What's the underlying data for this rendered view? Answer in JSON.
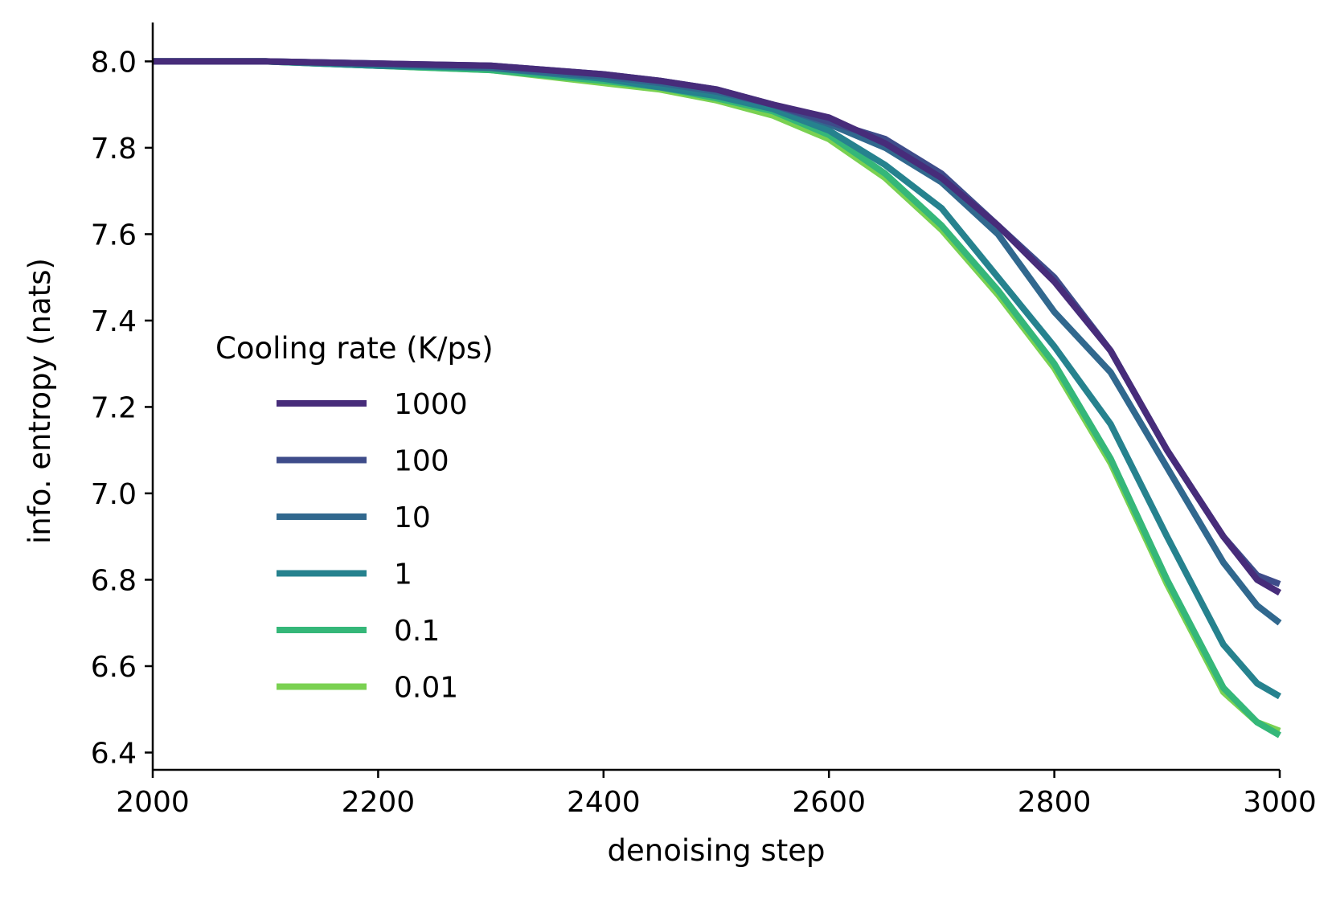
{
  "chart_data": {
    "type": "line",
    "title": "",
    "xlabel": "denoising step",
    "ylabel": "info. entropy (nats)",
    "xlim": [
      2000,
      3000
    ],
    "ylim": [
      6.36,
      8.09
    ],
    "xticks": [
      2000,
      2200,
      2400,
      2600,
      2800,
      3000
    ],
    "xtick_labels": [
      "2000",
      "2200",
      "2400",
      "2600",
      "2800",
      "3000"
    ],
    "yticks": [
      6.4,
      6.6,
      6.8,
      7.0,
      7.2,
      7.4,
      7.6,
      7.8,
      8.0
    ],
    "ytick_labels": [
      "6.4",
      "6.6",
      "6.8",
      "7.0",
      "7.2",
      "7.4",
      "7.6",
      "7.8",
      "8.0"
    ],
    "grid": false,
    "legend": {
      "title": "Cooling rate (K/ps)",
      "placement": "center-left"
    },
    "x": [
      2000,
      2100,
      2200,
      2300,
      2400,
      2450,
      2500,
      2550,
      2600,
      2650,
      2700,
      2750,
      2800,
      2850,
      2900,
      2950,
      2980,
      3000
    ],
    "series": [
      {
        "name": "1000",
        "color": "#472c7a",
        "values": [
          8.0,
          8.0,
          7.995,
          7.99,
          7.97,
          7.955,
          7.935,
          7.9,
          7.87,
          7.81,
          7.73,
          7.62,
          7.49,
          7.33,
          7.1,
          6.9,
          6.8,
          6.77
        ]
      },
      {
        "name": "100",
        "color": "#3e4c8a",
        "values": [
          8.0,
          8.0,
          7.995,
          7.99,
          7.97,
          7.955,
          7.935,
          7.9,
          7.86,
          7.82,
          7.74,
          7.62,
          7.5,
          7.33,
          7.1,
          6.9,
          6.81,
          6.79
        ]
      },
      {
        "name": "10",
        "color": "#31688e",
        "values": [
          8.0,
          8.0,
          7.995,
          7.985,
          7.965,
          7.95,
          7.93,
          7.9,
          7.855,
          7.8,
          7.72,
          7.6,
          7.42,
          7.28,
          7.06,
          6.84,
          6.74,
          6.7
        ]
      },
      {
        "name": "1",
        "color": "#26828e",
        "values": [
          8.0,
          8.0,
          7.99,
          7.985,
          7.96,
          7.94,
          7.92,
          7.89,
          7.84,
          7.76,
          7.66,
          7.5,
          7.34,
          7.16,
          6.9,
          6.65,
          6.56,
          6.53
        ]
      },
      {
        "name": "0.1",
        "color": "#35b779",
        "values": [
          8.0,
          8.0,
          7.99,
          7.98,
          7.955,
          7.94,
          7.915,
          7.885,
          7.83,
          7.74,
          7.62,
          7.47,
          7.3,
          7.08,
          6.8,
          6.55,
          6.47,
          6.44
        ]
      },
      {
        "name": "0.01",
        "color": "#7ad151",
        "values": [
          8.0,
          8.0,
          7.99,
          7.98,
          7.95,
          7.935,
          7.91,
          7.875,
          7.82,
          7.73,
          7.61,
          7.46,
          7.29,
          7.07,
          6.79,
          6.54,
          6.47,
          6.45
        ]
      }
    ]
  }
}
